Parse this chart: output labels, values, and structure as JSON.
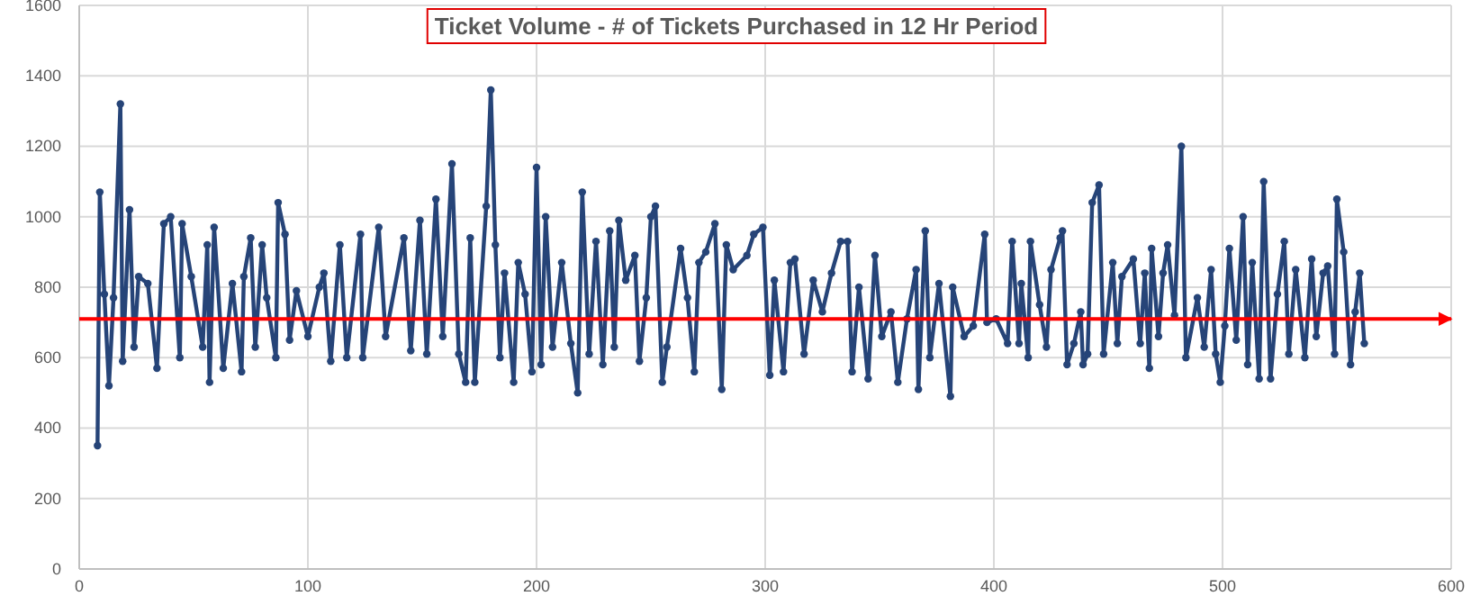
{
  "chart_data": {
    "type": "line",
    "title": "Ticket Volume - # of Tickets Purchased in 12 Hr Period",
    "series": [
      {
        "color": "#264478",
        "x": [
          8,
          9,
          11,
          13,
          15,
          18,
          19,
          22,
          24,
          26,
          30,
          34,
          37,
          40,
          44,
          45,
          49,
          54,
          56,
          57,
          59,
          63,
          67,
          71,
          72,
          75,
          77,
          80,
          82,
          86,
          87,
          90,
          92,
          95,
          100,
          105,
          107,
          110,
          114,
          117,
          123,
          124,
          131,
          134,
          142,
          145,
          149,
          152,
          156,
          159,
          163,
          166,
          169,
          171,
          173,
          178,
          180,
          182,
          184,
          186,
          190,
          192,
          195,
          198,
          200,
          202,
          204,
          207,
          211,
          215,
          218,
          220,
          223,
          226,
          229,
          232,
          234,
          236,
          239,
          243,
          245,
          248,
          250,
          252,
          255,
          257,
          263,
          266,
          269,
          271,
          274,
          278,
          281,
          283,
          286,
          292,
          295,
          299,
          302,
          304,
          308,
          311,
          313,
          317,
          321,
          325,
          329,
          333,
          336,
          338,
          341,
          345,
          348,
          351,
          355,
          358,
          362,
          366,
          367,
          370,
          372,
          376,
          381,
          382,
          387,
          391,
          396,
          397,
          401,
          406,
          408,
          411,
          412,
          415,
          416,
          420,
          423,
          425,
          429,
          430,
          432,
          435,
          438,
          439,
          441,
          443,
          446,
          448,
          452,
          454,
          456,
          461,
          464,
          466,
          468,
          469,
          472,
          474,
          476,
          479,
          482,
          484,
          489,
          492,
          495,
          497,
          499,
          501,
          503,
          506,
          509,
          511,
          513,
          516,
          518,
          521,
          524,
          527,
          529,
          532,
          536,
          539,
          541,
          544,
          546,
          549,
          550,
          553,
          556,
          558,
          560,
          562
        ],
        "values": [
          350,
          1070,
          780,
          520,
          770,
          1320,
          590,
          1020,
          630,
          830,
          810,
          570,
          980,
          1000,
          600,
          980,
          830,
          630,
          920,
          530,
          970,
          570,
          810,
          560,
          830,
          940,
          630,
          920,
          770,
          600,
          1040,
          950,
          650,
          790,
          660,
          800,
          840,
          590,
          920,
          600,
          950,
          600,
          970,
          660,
          940,
          620,
          990,
          610,
          1050,
          660,
          1150,
          610,
          530,
          940,
          530,
          1030,
          1360,
          920,
          600,
          840,
          530,
          870,
          780,
          560,
          1140,
          580,
          1000,
          630,
          870,
          640,
          500,
          1070,
          610,
          930,
          580,
          960,
          630,
          990,
          820,
          890,
          590,
          770,
          1000,
          1030,
          530,
          630,
          910,
          770,
          560,
          870,
          900,
          980,
          510,
          920,
          850,
          890,
          950,
          970,
          550,
          820,
          560,
          870,
          880,
          610,
          820,
          730,
          840,
          930,
          930,
          560,
          800,
          540,
          890,
          660,
          730,
          530,
          710,
          850,
          510,
          960,
          600,
          810,
          490,
          800,
          660,
          690,
          950,
          700,
          710,
          640,
          930,
          640,
          810,
          600,
          930,
          750,
          630,
          850,
          940,
          960,
          580,
          640,
          730,
          580,
          610,
          1040,
          1090,
          610,
          870,
          640,
          830,
          880,
          640,
          840,
          570,
          910,
          660,
          840,
          920,
          720,
          1200,
          600,
          770,
          630,
          850,
          610,
          530,
          690,
          910,
          650,
          1000,
          580,
          870,
          540,
          1100,
          540,
          780,
          930,
          610,
          850,
          600,
          880,
          660,
          840,
          860,
          610,
          1050,
          900,
          580,
          730,
          840,
          640
        ]
      }
    ],
    "xlim": [
      0,
      600
    ],
    "xticks": [
      0,
      100,
      200,
      300,
      400,
      500,
      600
    ],
    "ylim": [
      0,
      1600
    ],
    "yticks": [
      0,
      200,
      400,
      600,
      800,
      1000,
      1200,
      1400,
      1600
    ],
    "grid": true,
    "marker": "circle",
    "line_style": "solid",
    "ref_lines": [
      {
        "axis": "y",
        "value": 710,
        "color": "#ff0000"
      }
    ]
  }
}
